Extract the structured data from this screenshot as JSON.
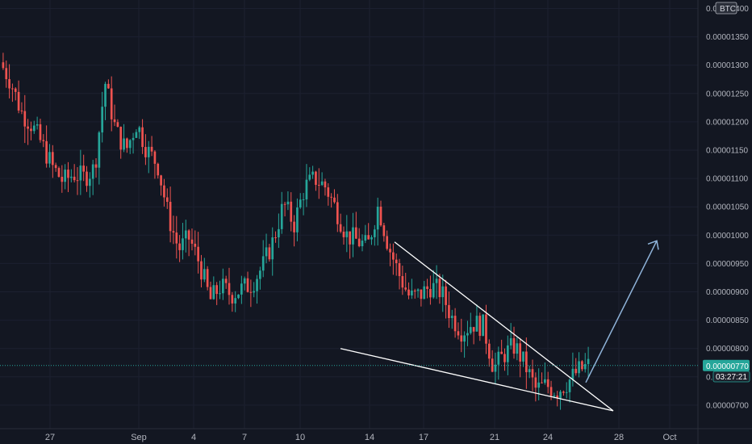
{
  "chart_data": {
    "type": "candlestick",
    "instrument_currency": "BTC",
    "y_axis_ticks": [
      "0.00001400",
      "0.00001350",
      "0.00001300",
      "0.00001250",
      "0.00001200",
      "0.00001150",
      "0.00001100",
      "0.00001050",
      "0.00001000",
      "0.00000950",
      "0.00000900",
      "0.00000850",
      "0.00000800",
      "0.00000750",
      "0.00000700"
    ],
    "x_axis_labels": [
      "27",
      "Sep",
      "4",
      "7",
      "10",
      "14",
      "17",
      "21",
      "24",
      "28",
      "Oct"
    ],
    "ylim": [
      6.85e-06,
      1.41e-05
    ],
    "current_price": {
      "value": "0.00000770",
      "countdown": "03:27:21",
      "color": "#26a69a"
    },
    "colors": {
      "background": "#131722",
      "up_candle": "#26a69a",
      "down_candle": "#ef5350",
      "trendline": "#ffffff",
      "projection_arrow": "#8fb3d9"
    },
    "price_path_close_values": [
      1.305e-05,
      1.272e-05,
      1.218e-05,
      1.195e-05,
      1.16e-05,
      1.12e-05,
      1.095e-05,
      1.108e-05,
      1.102e-05,
      1.118e-05,
      1.27e-05,
      1.185e-05,
      1.15e-05,
      1.198e-05,
      1.15e-05,
      1.125e-05,
      1.035e-05,
      9.75e-06,
      9.95e-06,
      9.5e-06,
      8.85e-06,
      9.1e-06,
      8.95e-06,
      9.05e-06,
      9.15e-06,
      9.45e-06,
      9.9e-06,
      1.055e-05,
      1.02e-05,
      1.085e-05,
      1.1e-05,
      1.085e-05,
      1.045e-05,
      1e-05,
      9.9e-06,
      9.8e-06,
      1.052e-05,
      9.8e-06,
      9.3e-06,
      8.9e-06,
      8.95e-06,
      9.1e-06,
      9e-06,
      8.55e-06,
      8.3e-06,
      8.45e-06,
      8.4e-06,
      7.65e-06,
      7.9e-06,
      8.05e-06,
      7.7e-06,
      7.28e-06,
      7.35e-06,
      7.25e-06,
      7.4e-06,
      7.6e-06,
      7.7e-06
    ],
    "wedge_upper_line": [
      9.88e-06,
      6.9e-06
    ],
    "wedge_lower_line": [
      8e-06,
      6.9e-06
    ],
    "projection_target": 9.9e-06
  }
}
